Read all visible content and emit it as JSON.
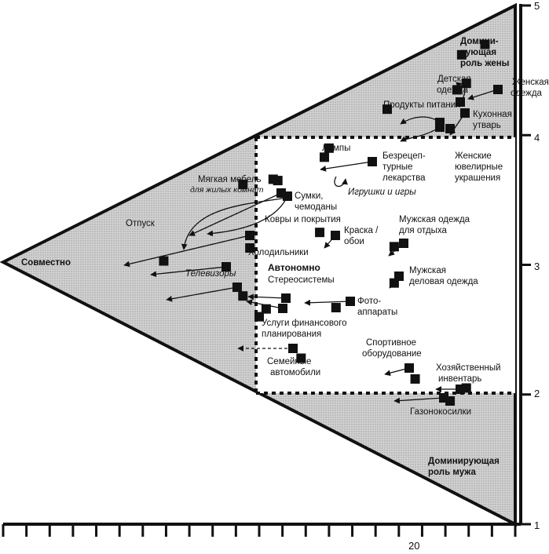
{
  "chart_data": {
    "type": "scatter",
    "title": "",
    "xlabel": "",
    "ylabel": "",
    "y_ticks": [
      "1",
      "2",
      "3",
      "4",
      "5"
    ],
    "x_tick_labels": [
      {
        "value": 20,
        "label": "20"
      }
    ],
    "xlim": [
      1,
      23
    ],
    "ylim": [
      1,
      5
    ],
    "grid": false,
    "region_labels": {
      "wife": [
        "Домини-",
        "рующая",
        "роль жены"
      ],
      "joint": "Совместно",
      "husband": [
        "Доминирующая",
        "роль мужа"
      ],
      "autonomous": "Автономно"
    },
    "categories": [
      {
        "label": [
          "Женская",
          "одежда"
        ],
        "x": 21.7,
        "y": 4.7
      },
      {
        "label": [
          "Детская",
          "одежда"
        ],
        "x": 20.7,
        "y": 4.62
      },
      {
        "label": [
          "Кухонная",
          "утварь"
        ],
        "x": 20.9,
        "y": 4.4
      },
      {
        "label": [
          "Продукты питания"
        ],
        "x": 20.5,
        "y": 4.35
      },
      {
        "label": [
          "Безрецеп-",
          "турные",
          "лекарства"
        ],
        "x": 17.5,
        "y": 4.2
      },
      {
        "label": [
          "Женские",
          "ювелирные",
          "украшения"
        ],
        "x": 20.2,
        "y": 4.05
      },
      {
        "label": [
          "Лампы"
        ],
        "x": 14.8,
        "y": 3.83
      },
      {
        "label": [
          "Игрушки и игры"
        ],
        "x": 15.0,
        "y": 3.9
      },
      {
        "label": [
          "Мягкая мебель",
          "для жилых комнат"
        ],
        "x": 12.6,
        "y": 3.66
      },
      {
        "label": [
          "Сумки,",
          "чемоданы"
        ],
        "x": 12.8,
        "y": 3.65
      },
      {
        "label": [
          "Ковры и покрытия"
        ],
        "x": 11.3,
        "y": 3.62
      },
      {
        "label": [
          "Отпуск"
        ],
        "x": 7.9,
        "y": 3.03
      },
      {
        "label": [
          "Холодильники"
        ],
        "x": 11.6,
        "y": 3.13
      },
      {
        "label": [
          "Краска /",
          "обои"
        ],
        "x": 14.6,
        "y": 3.25
      },
      {
        "label": [
          "Мужская одежда",
          "для отдыха"
        ],
        "x": 17.8,
        "y": 3.14
      },
      {
        "label": [
          "Мужская",
          "деловая одежда"
        ],
        "x": 17.8,
        "y": 2.86
      },
      {
        "label": [
          "Телевизоры"
        ],
        "x": 11.3,
        "y": 2.76
      },
      {
        "label": [
          "Стереосистемы"
        ],
        "x": 12.3,
        "y": 2.66
      },
      {
        "label": [
          "Фото-",
          "аппараты"
        ],
        "x": 15.3,
        "y": 2.67
      },
      {
        "label": [
          "Услуги финансового",
          "планирования"
        ],
        "x": 12.0,
        "y": 2.6
      },
      {
        "label": [
          "Семейные",
          "автомобили"
        ],
        "x": 13.8,
        "y": 2.28
      },
      {
        "label": [
          "Спортивное",
          "оборудование"
        ],
        "x": 18.7,
        "y": 2.12
      },
      {
        "label": [
          "Хозяйственный",
          "инвентарь"
        ],
        "x": 20.9,
        "y": 2.05
      },
      {
        "label": [
          "Газонокосилки"
        ],
        "x": 20.2,
        "y": 1.95
      }
    ]
  },
  "labels": {
    "x_tick_20": "20",
    "y1": "1",
    "y2": "2",
    "y3": "3",
    "y4": "4",
    "y5": "5",
    "wife_1": "Домини-",
    "wife_2": "рующая",
    "wife_3": "роль жены",
    "joint": "Совместно",
    "husband_1": "Доминирующая",
    "husband_2": "роль мужа",
    "autonomous": "Автономно",
    "womens_clothing_1": "Женская",
    "womens_clothing_2": "одежда",
    "kids_clothing_1": "Детская",
    "kids_clothing_2": "одежда",
    "kitchen_1": "Кухонная",
    "kitchen_2": "утварь",
    "groceries": "Продукты питания",
    "otc_1": "Безрецеп-",
    "otc_2": "турные",
    "otc_3": "лекарства",
    "jewelry_1": "Женские",
    "jewelry_2": "ювелирные",
    "jewelry_3": "украшения",
    "lamps": "Лампы",
    "toys": "Игрушки и игры",
    "furniture_1": "Мягкая мебель",
    "furniture_2": "для жилых комнат",
    "luggage_1": "Сумки,",
    "luggage_2": "чемоданы",
    "carpets": "Ковры и покрытия",
    "vacation": "Отпуск",
    "fridges": "Холодильники",
    "paint_1": "Краска /",
    "paint_2": "обои",
    "mens_casual_1": "Мужская одежда",
    "mens_casual_2": "для отдыха",
    "mens_business_1": "Мужская",
    "mens_business_2": "деловая одежда",
    "tv": "Телевизоры",
    "stereo": "Стереосистемы",
    "cameras_1": "Фото-",
    "cameras_2": "аппараты",
    "finance_1": "Услуги финансового",
    "finance_2": "планирования",
    "cars_1": "Семейные",
    "cars_2": "автомобили",
    "sport_1": "Спортивное",
    "sport_2": "оборудование",
    "hardware_1": "Хозяйственный",
    "hardware_2": "инвентарь",
    "mowers": "Газонокосилки"
  }
}
